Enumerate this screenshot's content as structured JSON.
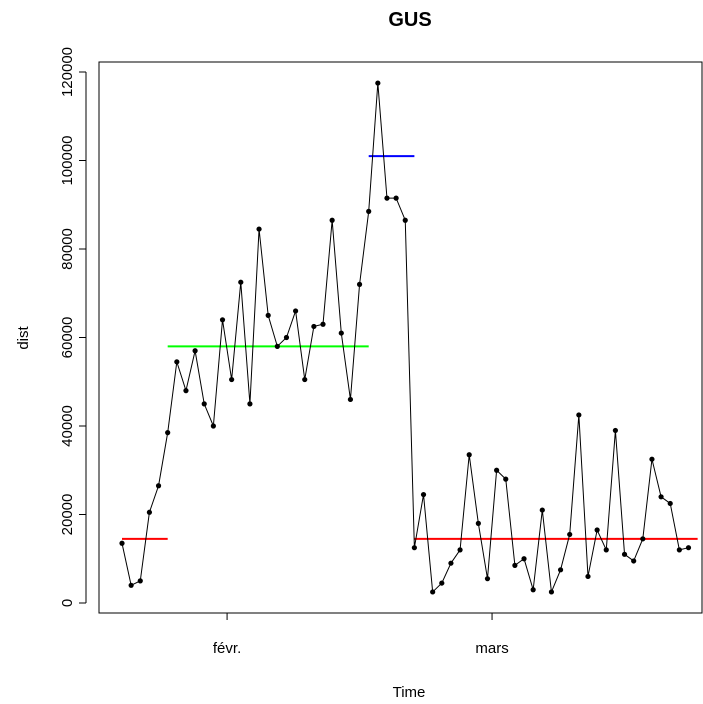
{
  "chart_data": {
    "type": "line",
    "title": "GUS",
    "xlabel": "Time",
    "ylabel": "dist",
    "ylim": [
      0,
      120000
    ],
    "y_ticks": [
      0,
      20000,
      40000,
      60000,
      80000,
      100000,
      120000
    ],
    "x_ticks": [
      {
        "label": "févr.",
        "index": 11.5
      },
      {
        "label": "mars",
        "index": 40.5
      }
    ],
    "grid": false,
    "series": [
      {
        "values": [
          13500,
          4000,
          5000,
          20500,
          26500,
          38500,
          54500,
          48000,
          57000,
          45000,
          40000,
          64000,
          50500,
          72500,
          45000,
          84500,
          65000,
          58000,
          60000,
          66000,
          50500,
          62500,
          63000,
          86500,
          61000,
          46000,
          72000,
          88500,
          117500,
          91500,
          91500,
          86500,
          12500,
          24500,
          2500,
          4500,
          9000,
          12000,
          33500,
          18000,
          5500,
          30000,
          28000,
          8500,
          10000,
          3000,
          21000,
          2500,
          7500,
          15500,
          42500,
          6000,
          16500,
          12000,
          39000,
          11000,
          9500,
          14500,
          32500,
          24000,
          22500,
          12000,
          12500
        ],
        "color": "#000000"
      }
    ],
    "segments": [
      {
        "x_start": 0,
        "x_end": 5,
        "value": 14500,
        "color": "#ff0000"
      },
      {
        "x_start": 5,
        "x_end": 27,
        "value": 58000,
        "color": "#00ff00"
      },
      {
        "x_start": 27,
        "x_end": 32,
        "value": 101000,
        "color": "#0000ff"
      },
      {
        "x_start": 32,
        "x_end": 63,
        "value": 14500,
        "color": "#ff0000"
      }
    ]
  }
}
